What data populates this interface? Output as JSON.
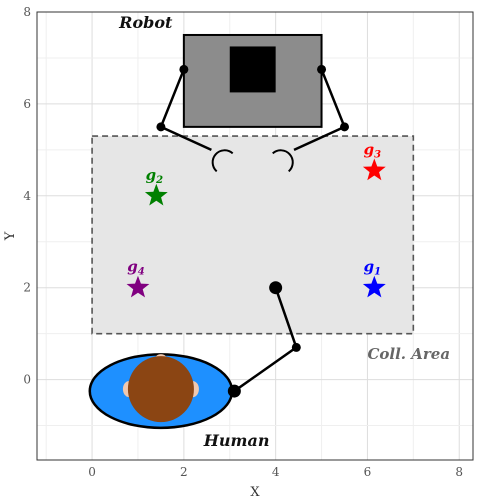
{
  "axes": {
    "xlabel": "X",
    "ylabel": "Y",
    "xlim": [
      -1.2,
      8.3
    ],
    "ylim": [
      -1.75,
      8.0
    ],
    "xticks": [
      0,
      2,
      4,
      6,
      8
    ],
    "yticks": [
      0,
      2,
      4,
      6,
      8
    ],
    "grid": true
  },
  "labels": {
    "robot": "Robot",
    "human": "Human",
    "coll_area": "Coll. Area"
  },
  "collision_area": {
    "x0": 0,
    "x1": 7,
    "y0": 1,
    "y1": 5.3,
    "fill": "#e6e6e6",
    "stroke": "#555555"
  },
  "robot": {
    "body": {
      "x0": 2,
      "x1": 5,
      "y0": 5.5,
      "y1": 7.5,
      "fill": "#8c8c8c"
    },
    "inner": {
      "x0": 3,
      "x1": 4,
      "y0": 6.25,
      "y1": 7.25,
      "fill": "#000000"
    },
    "left_arm": [
      [
        2,
        6.75
      ],
      [
        1.5,
        5.5
      ],
      [
        2.6,
        5
      ]
    ],
    "right_arm": [
      [
        5,
        6.75
      ],
      [
        5.5,
        5.5
      ],
      [
        4.4,
        5
      ]
    ],
    "left_gripper": [
      2.65,
      4.75
    ],
    "right_gripper": [
      4.35,
      4.75
    ]
  },
  "human": {
    "center": [
      1.5,
      -0.25
    ],
    "rx": 1.55,
    "ry": 0.8,
    "body_color": "#1e90ff",
    "head_color": "#8b4513",
    "arm": [
      [
        3.1,
        -0.25
      ],
      [
        4.45,
        0.7
      ],
      [
        4,
        2
      ]
    ]
  },
  "goals": [
    {
      "id": "g1",
      "name": "g",
      "sub": "1",
      "x": 6.15,
      "y": 2,
      "color": "#0000ff"
    },
    {
      "id": "g2",
      "name": "g",
      "sub": "2",
      "x": 1.4,
      "y": 4,
      "color": "#008000"
    },
    {
      "id": "g3",
      "name": "g",
      "sub": "3",
      "x": 6.15,
      "y": 4.55,
      "color": "#ff0000"
    },
    {
      "id": "g4",
      "name": "g",
      "sub": "4",
      "x": 1,
      "y": 2,
      "color": "#800080"
    }
  ]
}
